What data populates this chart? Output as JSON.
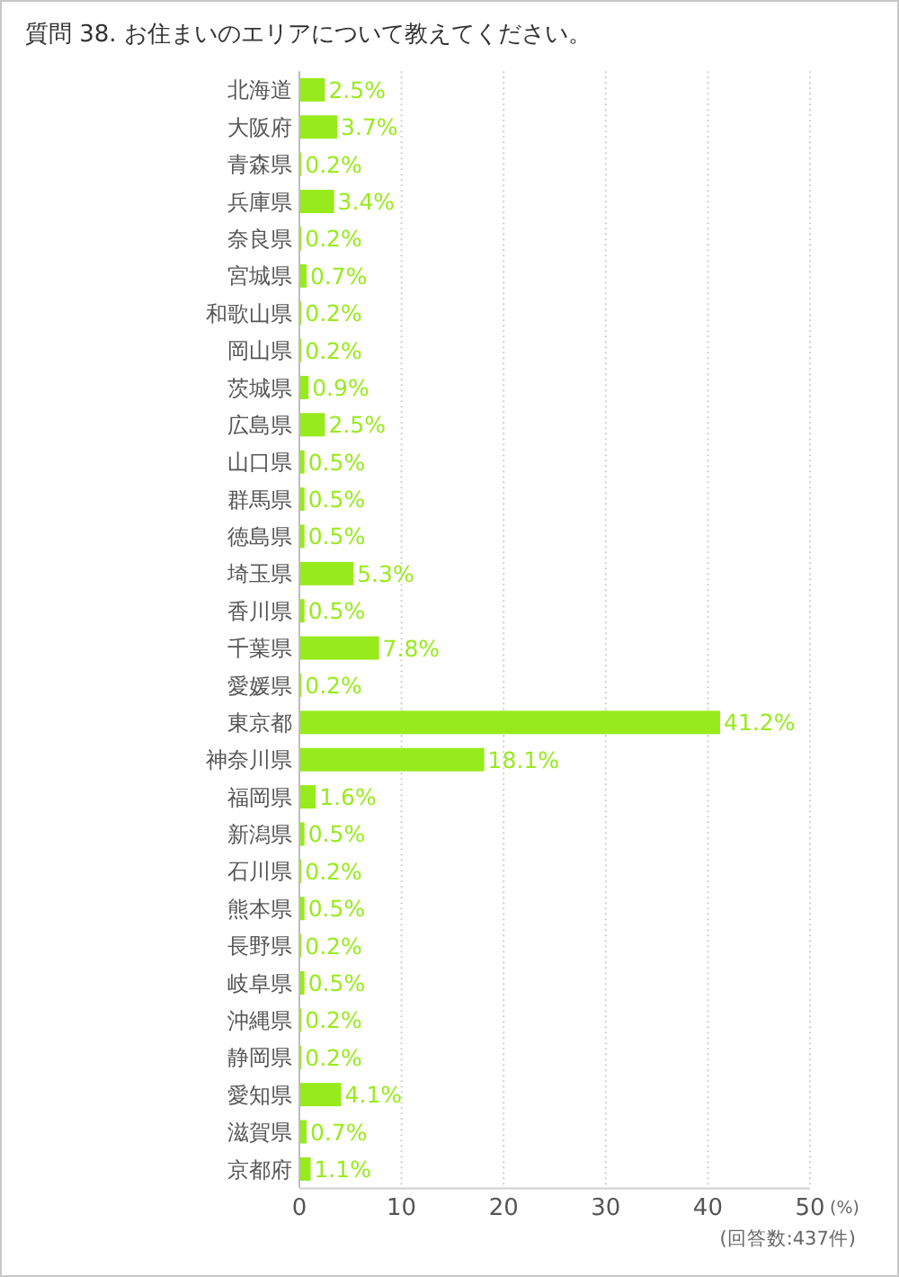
{
  "chart_data": {
    "type": "bar",
    "orientation": "horizontal",
    "title": "質問 38. お住まいのエリアについて教えてください。",
    "xlabel": "(%)",
    "annotations": [
      "(回答数:437件)"
    ],
    "categories": [
      "北海道",
      "大阪府",
      "青森県",
      "兵庫県",
      "奈良県",
      "宮城県",
      "和歌山県",
      "岡山県",
      "茨城県",
      "広島県",
      "山口県",
      "群馬県",
      "徳島県",
      "埼玉県",
      "香川県",
      "千葉県",
      "愛媛県",
      "東京都",
      "神奈川県",
      "福岡県",
      "新潟県",
      "石川県",
      "熊本県",
      "長野県",
      "岐阜県",
      "沖縄県",
      "静岡県",
      "愛知県",
      "滋賀県",
      "京都府"
    ],
    "values": [
      2.5,
      3.7,
      0.2,
      3.4,
      0.2,
      0.7,
      0.2,
      0.2,
      0.9,
      2.5,
      0.5,
      0.5,
      0.5,
      5.3,
      0.5,
      7.8,
      0.2,
      41.2,
      18.1,
      1.6,
      0.5,
      0.2,
      0.5,
      0.2,
      0.5,
      0.2,
      0.2,
      4.1,
      0.7,
      1.1
    ],
    "value_labels": [
      "2.5%",
      "3.7%",
      "0.2%",
      "3.4%",
      "0.2%",
      "0.7%",
      "0.2%",
      "0.2%",
      "0.9%",
      "2.5%",
      "0.5%",
      "0.5%",
      "0.5%",
      "5.3%",
      "0.5%",
      "7.8%",
      "0.2%",
      "41.2%",
      "18.1%",
      "1.6%",
      "0.5%",
      "0.2%",
      "0.5%",
      "0.2%",
      "0.5%",
      "0.2%",
      "0.2%",
      "4.1%",
      "0.7%",
      "1.1%"
    ],
    "color": "#97eb1c",
    "xlim": [
      0,
      50
    ],
    "xticks": [
      0,
      10,
      20,
      30,
      40,
      50
    ],
    "grid": "x"
  }
}
